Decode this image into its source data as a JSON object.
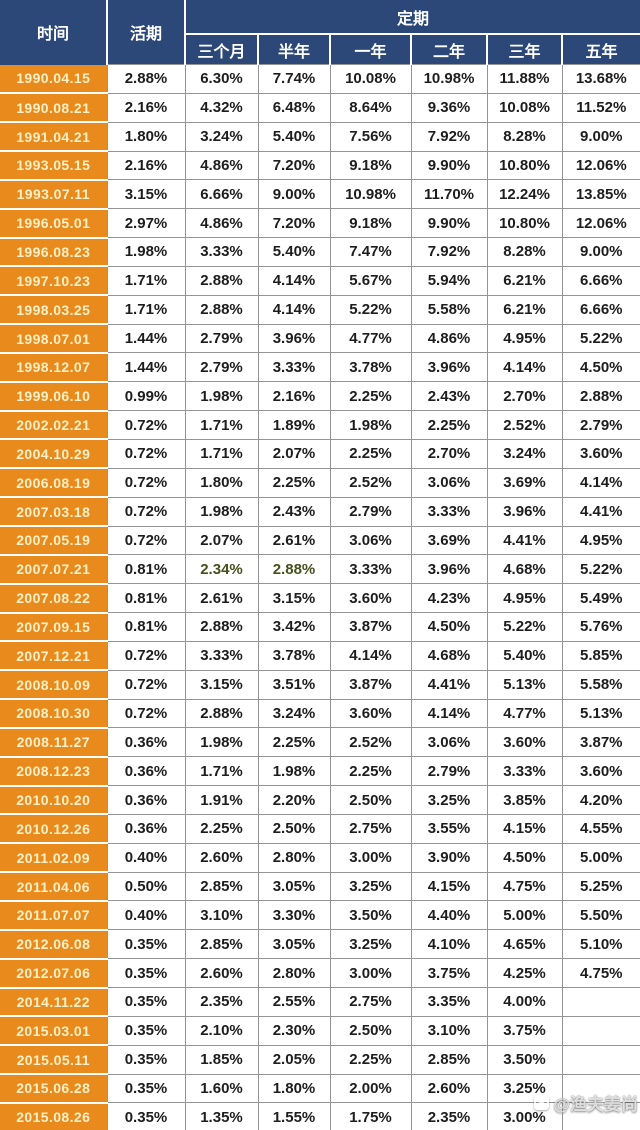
{
  "colors": {
    "header_bg": "#2b4878",
    "header_text": "#ffffff",
    "date_bg": "#e98a1d",
    "date_text": "#fcf0c6",
    "value_text": "#1d1d1d",
    "highlight_text": "#44511c",
    "grid_line": "#949494"
  },
  "table": {
    "header": {
      "time": "时间",
      "demand": "活期",
      "fixed": "定期",
      "terms": [
        "三个月",
        "半年",
        "一年",
        "二年",
        "三年",
        "五年"
      ]
    },
    "rows": [
      {
        "date": "1990.04.15",
        "values": [
          "2.88%",
          "6.30%",
          "7.74%",
          "10.08%",
          "10.98%",
          "11.88%",
          "13.68%"
        ]
      },
      {
        "date": "1990.08.21",
        "values": [
          "2.16%",
          "4.32%",
          "6.48%",
          "8.64%",
          "9.36%",
          "10.08%",
          "11.52%"
        ]
      },
      {
        "date": "1991.04.21",
        "values": [
          "1.80%",
          "3.24%",
          "5.40%",
          "7.56%",
          "7.92%",
          "8.28%",
          "9.00%"
        ]
      },
      {
        "date": "1993.05.15",
        "values": [
          "2.16%",
          "4.86%",
          "7.20%",
          "9.18%",
          "9.90%",
          "10.80%",
          "12.06%"
        ]
      },
      {
        "date": "1993.07.11",
        "values": [
          "3.15%",
          "6.66%",
          "9.00%",
          "10.98%",
          "11.70%",
          "12.24%",
          "13.85%"
        ]
      },
      {
        "date": "1996.05.01",
        "values": [
          "2.97%",
          "4.86%",
          "7.20%",
          "9.18%",
          "9.90%",
          "10.80%",
          "12.06%"
        ]
      },
      {
        "date": "1996.08.23",
        "values": [
          "1.98%",
          "3.33%",
          "5.40%",
          "7.47%",
          "7.92%",
          "8.28%",
          "9.00%"
        ]
      },
      {
        "date": "1997.10.23",
        "values": [
          "1.71%",
          "2.88%",
          "4.14%",
          "5.67%",
          "5.94%",
          "6.21%",
          "6.66%"
        ]
      },
      {
        "date": "1998.03.25",
        "values": [
          "1.71%",
          "2.88%",
          "4.14%",
          "5.22%",
          "5.58%",
          "6.21%",
          "6.66%"
        ]
      },
      {
        "date": "1998.07.01",
        "values": [
          "1.44%",
          "2.79%",
          "3.96%",
          "4.77%",
          "4.86%",
          "4.95%",
          "5.22%"
        ]
      },
      {
        "date": "1998.12.07",
        "values": [
          "1.44%",
          "2.79%",
          "3.33%",
          "3.78%",
          "3.96%",
          "4.14%",
          "4.50%"
        ]
      },
      {
        "date": "1999.06.10",
        "values": [
          "0.99%",
          "1.98%",
          "2.16%",
          "2.25%",
          "2.43%",
          "2.70%",
          "2.88%"
        ]
      },
      {
        "date": "2002.02.21",
        "values": [
          "0.72%",
          "1.71%",
          "1.89%",
          "1.98%",
          "2.25%",
          "2.52%",
          "2.79%"
        ]
      },
      {
        "date": "2004.10.29",
        "values": [
          "0.72%",
          "1.71%",
          "2.07%",
          "2.25%",
          "2.70%",
          "3.24%",
          "3.60%"
        ]
      },
      {
        "date": "2006.08.19",
        "values": [
          "0.72%",
          "1.80%",
          "2.25%",
          "2.52%",
          "3.06%",
          "3.69%",
          "4.14%"
        ]
      },
      {
        "date": "2007.03.18",
        "values": [
          "0.72%",
          "1.98%",
          "2.43%",
          "2.79%",
          "3.33%",
          "3.96%",
          "4.41%"
        ]
      },
      {
        "date": "2007.05.19",
        "values": [
          "0.72%",
          "2.07%",
          "2.61%",
          "3.06%",
          "3.69%",
          "4.41%",
          "4.95%"
        ]
      },
      {
        "date": "2007.07.21",
        "values": [
          "0.81%",
          "2.34%",
          "2.88%",
          "3.33%",
          "3.96%",
          "4.68%",
          "5.22%"
        ],
        "hl": [
          1,
          2
        ]
      },
      {
        "date": "2007.08.22",
        "values": [
          "0.81%",
          "2.61%",
          "3.15%",
          "3.60%",
          "4.23%",
          "4.95%",
          "5.49%"
        ]
      },
      {
        "date": "2007.09.15",
        "values": [
          "0.81%",
          "2.88%",
          "3.42%",
          "3.87%",
          "4.50%",
          "5.22%",
          "5.76%"
        ]
      },
      {
        "date": "2007.12.21",
        "values": [
          "0.72%",
          "3.33%",
          "3.78%",
          "4.14%",
          "4.68%",
          "5.40%",
          "5.85%"
        ]
      },
      {
        "date": "2008.10.09",
        "values": [
          "0.72%",
          "3.15%",
          "3.51%",
          "3.87%",
          "4.41%",
          "5.13%",
          "5.58%"
        ]
      },
      {
        "date": "2008.10.30",
        "values": [
          "0.72%",
          "2.88%",
          "3.24%",
          "3.60%",
          "4.14%",
          "4.77%",
          "5.13%"
        ]
      },
      {
        "date": "2008.11.27",
        "values": [
          "0.36%",
          "1.98%",
          "2.25%",
          "2.52%",
          "3.06%",
          "3.60%",
          "3.87%"
        ]
      },
      {
        "date": "2008.12.23",
        "values": [
          "0.36%",
          "1.71%",
          "1.98%",
          "2.25%",
          "2.79%",
          "3.33%",
          "3.60%"
        ]
      },
      {
        "date": "2010.10.20",
        "values": [
          "0.36%",
          "1.91%",
          "2.20%",
          "2.50%",
          "3.25%",
          "3.85%",
          "4.20%"
        ]
      },
      {
        "date": "2010.12.26",
        "values": [
          "0.36%",
          "2.25%",
          "2.50%",
          "2.75%",
          "3.55%",
          "4.15%",
          "4.55%"
        ]
      },
      {
        "date": "2011.02.09",
        "values": [
          "0.40%",
          "2.60%",
          "2.80%",
          "3.00%",
          "3.90%",
          "4.50%",
          "5.00%"
        ]
      },
      {
        "date": "2011.04.06",
        "values": [
          "0.50%",
          "2.85%",
          "3.05%",
          "3.25%",
          "4.15%",
          "4.75%",
          "5.25%"
        ]
      },
      {
        "date": "2011.07.07",
        "values": [
          "0.40%",
          "3.10%",
          "3.30%",
          "3.50%",
          "4.40%",
          "5.00%",
          "5.50%"
        ]
      },
      {
        "date": "2012.06.08",
        "values": [
          "0.35%",
          "2.85%",
          "3.05%",
          "3.25%",
          "4.10%",
          "4.65%",
          "5.10%"
        ]
      },
      {
        "date": "2012.07.06",
        "values": [
          "0.35%",
          "2.60%",
          "2.80%",
          "3.00%",
          "3.75%",
          "4.25%",
          "4.75%"
        ]
      },
      {
        "date": "2014.11.22",
        "values": [
          "0.35%",
          "2.35%",
          "2.55%",
          "2.75%",
          "3.35%",
          "4.00%",
          ""
        ]
      },
      {
        "date": "2015.03.01",
        "values": [
          "0.35%",
          "2.10%",
          "2.30%",
          "2.50%",
          "3.10%",
          "3.75%",
          ""
        ]
      },
      {
        "date": "2015.05.11",
        "values": [
          "0.35%",
          "1.85%",
          "2.05%",
          "2.25%",
          "2.85%",
          "3.50%",
          ""
        ]
      },
      {
        "date": "2015.06.28",
        "values": [
          "0.35%",
          "1.60%",
          "1.80%",
          "2.00%",
          "2.60%",
          "3.25%",
          ""
        ]
      },
      {
        "date": "2015.08.26",
        "values": [
          "0.35%",
          "1.35%",
          "1.55%",
          "1.75%",
          "2.35%",
          "3.00%",
          ""
        ]
      }
    ]
  },
  "watermark": {
    "text": "@渔夫姜尚",
    "icon": "watermark-logo-icon"
  }
}
